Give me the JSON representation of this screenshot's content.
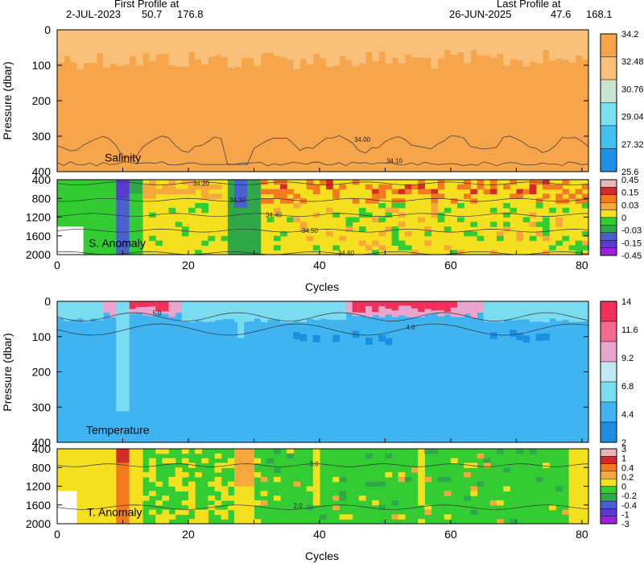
{
  "header": {
    "first_title": "First Profile at",
    "first_date": "2-JUL-2023",
    "first_lat": "50.7",
    "first_lon": "176.8",
    "last_title": "Last Profile at",
    "last_date": "26-JUN-2025",
    "last_lat": "47.6",
    "last_lon": "168.1"
  },
  "chart_data": [
    {
      "type": "heatmap",
      "name": "Salinity",
      "ylabel": "Pressure (dbar)",
      "y_reversed": true,
      "ylim": [
        0,
        400
      ],
      "yticks": [
        "0",
        "100",
        "200",
        "300",
        "400"
      ],
      "xlim": [
        0,
        81
      ],
      "colorbar": [
        "34.2",
        "32.48",
        "30.76",
        "29.04",
        "27.32",
        "25.6"
      ],
      "contours": [
        "34.00",
        "34.10"
      ],
      "colors": [
        "#F7A54A",
        "#F9C07A",
        "#C8E6CF",
        "#7BE0F0",
        "#3FC2F0",
        "#1E90E8"
      ]
    },
    {
      "type": "heatmap",
      "name": "S. Anomaly",
      "y_reversed": true,
      "ylim": [
        400,
        2000
      ],
      "yticks": [
        "400",
        "800",
        "1200",
        "1600",
        "2000"
      ],
      "xlim": [
        0,
        81
      ],
      "colorbar": [
        "0.45",
        "0.15",
        "0.03",
        "-0.03",
        "-0.15",
        "-0.45"
      ],
      "colorbar_all": [
        "0.45",
        "0.15",
        "0.03",
        "0",
        "-0.03",
        "-0.15",
        "-0.45"
      ],
      "contours": [
        "34.20",
        "34.30",
        "34.40",
        "34.50",
        "34.60"
      ],
      "colors": [
        "#E8B8B8",
        "#D42A2A",
        "#F57A1E",
        "#F7A83A",
        "#F5E020",
        "#33CC33",
        "#2FA84A",
        "#4A5FD0",
        "#5A3AD0",
        "#A020E0"
      ]
    },
    {
      "type": "heatmap",
      "name": "Temperature",
      "ylabel": "Pressure (dbar)",
      "y_reversed": true,
      "ylim": [
        0,
        400
      ],
      "yticks": [
        "0",
        "100",
        "200",
        "300",
        "400"
      ],
      "xlabel": "Cycles",
      "xticks": [
        "0",
        "20",
        "40",
        "60",
        "80"
      ],
      "xlim": [
        0,
        81
      ],
      "colorbar": [
        "14",
        "11.6",
        "9.2",
        "6.8",
        "4.4",
        "2"
      ],
      "contours": [
        "5.0",
        "4.0"
      ],
      "colors": [
        "#F0305A",
        "#F46A8C",
        "#E8A6CE",
        "#BFE8F0",
        "#7ADCF0",
        "#3FB4F0",
        "#1E8FE0"
      ]
    },
    {
      "type": "heatmap",
      "name": "T. Anomaly",
      "y_reversed": true,
      "ylim": [
        400,
        2000
      ],
      "yticks": [
        "400",
        "800",
        "1200",
        "1600",
        "2000"
      ],
      "xlabel": "Cycles",
      "xticks": [
        "0",
        "20",
        "40",
        "60",
        "80"
      ],
      "xlim": [
        0,
        81
      ],
      "colorbar": [
        "3",
        "1",
        "0.4",
        "0.2",
        "0",
        "-0.2",
        "-0.4",
        "-1",
        "-3"
      ],
      "contours": [
        "3.0",
        "2.0"
      ],
      "colors": [
        "#E8B8B8",
        "#D42A2A",
        "#F57A1E",
        "#F7A83A",
        "#F5E020",
        "#33CC33",
        "#2FA84A",
        "#4A5FD0",
        "#5A3AD0",
        "#A020E0"
      ]
    }
  ]
}
